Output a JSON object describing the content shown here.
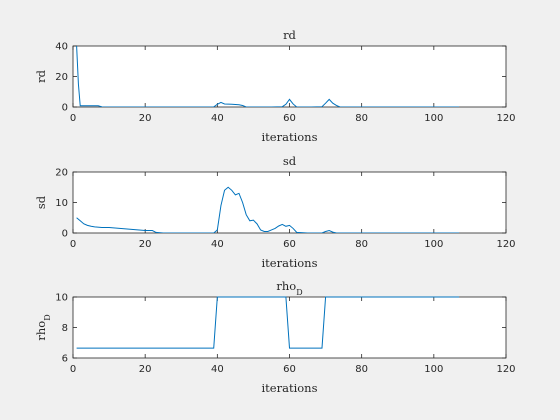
{
  "chart_data": [
    {
      "type": "line",
      "title": "rd",
      "xlabel": "iterations",
      "ylabel": "rd",
      "xlim": [
        0,
        120
      ],
      "ylim": [
        0,
        40
      ],
      "xticks": [
        0,
        20,
        40,
        60,
        80,
        100,
        120
      ],
      "yticks": [
        0,
        20,
        40
      ],
      "line_color": "#0072bd",
      "series": [
        {
          "x": [
            1,
            1.5,
            2,
            3,
            5,
            7,
            8,
            10,
            20,
            30,
            38,
            39,
            40,
            41,
            42,
            44,
            46,
            47,
            48,
            50,
            55,
            58,
            59,
            60,
            61,
            62,
            63,
            66,
            69,
            70,
            71,
            72,
            73,
            74,
            80,
            90,
            100,
            107
          ],
          "y": [
            40,
            15,
            0.8,
            0.8,
            0.8,
            0.8,
            0.1,
            0,
            0,
            0,
            0,
            0.1,
            1.8,
            3,
            2,
            1.8,
            1.5,
            1,
            0,
            0,
            0,
            0.2,
            1.8,
            5,
            2,
            0,
            0,
            0,
            0.2,
            2.5,
            5,
            2.5,
            1,
            0,
            0,
            0,
            0,
            0
          ]
        }
      ]
    },
    {
      "type": "line",
      "title": "sd",
      "xlabel": "iterations",
      "ylabel": "sd",
      "xlim": [
        0,
        120
      ],
      "ylim": [
        0,
        20
      ],
      "xticks": [
        0,
        20,
        40,
        60,
        80,
        100,
        120
      ],
      "yticks": [
        0,
        10,
        20
      ],
      "line_color": "#0072bd",
      "series": [
        {
          "x": [
            1,
            2,
            3,
            4,
            5,
            6,
            8,
            10,
            15,
            20,
            22,
            23,
            25,
            30,
            35,
            39,
            40,
            41,
            42,
            43,
            44,
            45,
            46,
            47,
            48,
            49,
            50,
            51,
            52,
            53,
            54,
            55,
            56,
            57,
            58,
            59,
            60,
            61,
            62,
            65,
            69,
            70,
            71,
            72,
            73,
            80,
            90,
            100,
            107
          ],
          "y": [
            5,
            4,
            3,
            2.5,
            2.2,
            2,
            1.8,
            1.8,
            1.3,
            0.8,
            0.8,
            0.2,
            0,
            0,
            0,
            0,
            1,
            9,
            14,
            15,
            14,
            12.5,
            13,
            10,
            6,
            4,
            4.2,
            3,
            1,
            0.5,
            0.5,
            1,
            1.5,
            2.3,
            2.8,
            2.2,
            2.5,
            1.5,
            0.2,
            0,
            0,
            0.5,
            0.8,
            0.3,
            0,
            0,
            0,
            0,
            0
          ]
        }
      ]
    },
    {
      "type": "line",
      "title": "rho_D",
      "xlabel": "iterations",
      "ylabel": "rho_D",
      "xlim": [
        0,
        120
      ],
      "ylim": [
        6,
        10
      ],
      "xticks": [
        0,
        20,
        40,
        60,
        80,
        100,
        120
      ],
      "yticks": [
        6,
        8,
        10
      ],
      "line_color": "#0072bd",
      "series": [
        {
          "x": [
            1,
            39,
            40,
            41,
            58,
            59,
            60,
            61,
            69,
            70,
            71,
            107
          ],
          "y": [
            6.65,
            6.65,
            10,
            10,
            10,
            10,
            6.65,
            6.65,
            6.65,
            10,
            10,
            10
          ]
        }
      ]
    }
  ]
}
